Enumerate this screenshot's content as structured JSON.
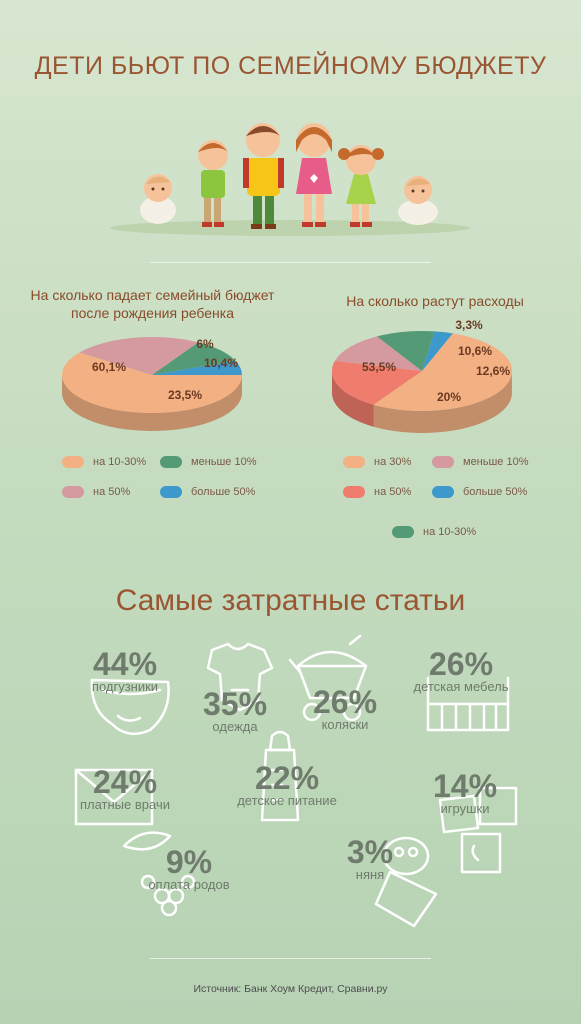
{
  "title": "ДЕТИ БЬЮТ ПО СЕМЕЙНОМУ БЮДЖЕТУ",
  "colors": {
    "peach": "#f2b083",
    "green": "#559a77",
    "pink": "#d49aa0",
    "blue": "#3d98cc",
    "coral": "#ef7c6d",
    "title_brown": "#9a5632",
    "icon_stroke": "#ffffff"
  },
  "chart_data": [
    {
      "type": "pie",
      "title": "На сколько падает семейный бюджет после рождения ребенка",
      "slices": [
        {
          "label": "на 10-30%",
          "value": 60.1,
          "value_label": "60,1%",
          "color": "#f2b083"
        },
        {
          "label": "на 50%",
          "value": 23.5,
          "value_label": "23,5%",
          "color": "#d49aa0"
        },
        {
          "label": "меньше 10%",
          "value": 10.4,
          "value_label": "10,4%",
          "color": "#559a77"
        },
        {
          "label": "больше 50%",
          "value": 6,
          "value_label": "6%",
          "color": "#3d98cc"
        }
      ],
      "legend": [
        "на 10-30%",
        "меньше 10%",
        "на 50%",
        "больше 50%"
      ]
    },
    {
      "type": "pie",
      "title": "На сколько растут расходы",
      "slices": [
        {
          "label": "на 30%",
          "value": 53.5,
          "value_label": "53,5%",
          "color": "#f2b083"
        },
        {
          "label": "на 50%",
          "value": 20,
          "value_label": "20%",
          "color": "#ef7c6d"
        },
        {
          "label": "меньше 10%",
          "value": 12.6,
          "value_label": "12,6%",
          "color": "#d49aa0"
        },
        {
          "label": "на 10-30%",
          "value": 10.6,
          "value_label": "10,6%",
          "color": "#559a77"
        },
        {
          "label": "больше 50%",
          "value": 3.3,
          "value_label": "3,3%",
          "color": "#3d98cc"
        }
      ],
      "legend": [
        "на 30%",
        "меньше 10%",
        "на 50%",
        "больше 50%",
        "на 10-30%"
      ]
    }
  ],
  "section2": {
    "title": "Самые затратные статьи",
    "items": [
      {
        "pct": "44%",
        "label": "подгузники",
        "icon": "diaper-icon"
      },
      {
        "pct": "35%",
        "label": "одежда",
        "icon": "onesie-icon"
      },
      {
        "pct": "26%",
        "label": "коляски",
        "icon": "stroller-icon"
      },
      {
        "pct": "26%",
        "label": "детская мебель",
        "icon": "crib-icon"
      },
      {
        "pct": "24%",
        "label": "платные врачи",
        "icon": "envelope-icon"
      },
      {
        "pct": "22%",
        "label": "детское питание",
        "icon": "baby-bottle-icon"
      },
      {
        "pct": "14%",
        "label": "игрушки",
        "icon": "toy-blocks-icon"
      },
      {
        "pct": "9%",
        "label": "оплата родов",
        "icon": "flowers-icon"
      },
      {
        "pct": "3%",
        "label": "няня",
        "icon": "swaddled-baby-icon"
      }
    ]
  },
  "source": "Источник: Банк Хоум Кредит, Сравни.ру"
}
